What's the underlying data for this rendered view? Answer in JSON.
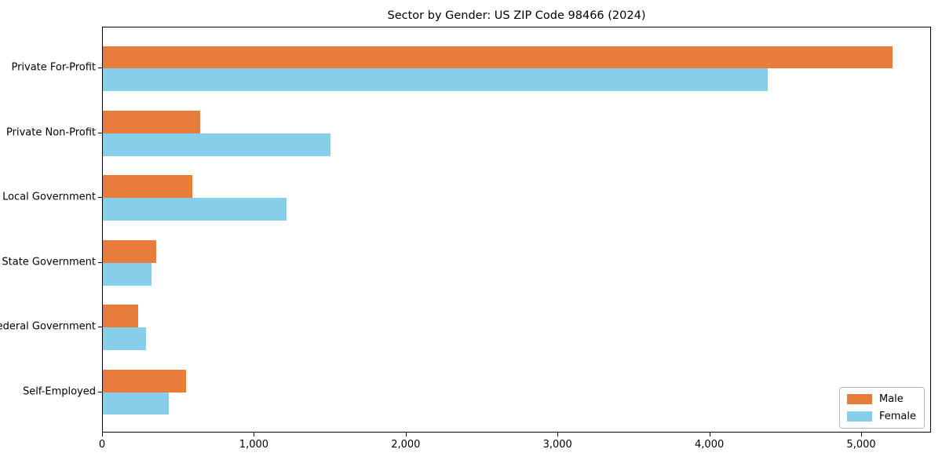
{
  "chart_data": {
    "type": "bar",
    "orientation": "horizontal",
    "title": "Sector by Gender: US ZIP Code 98466 (2024)",
    "categories": [
      "Private For-Profit",
      "Private Non-Profit",
      "Local Government",
      "State Government",
      "Federal Government",
      "Self-Employed"
    ],
    "series": [
      {
        "name": "Male",
        "color": "#E87D3B",
        "values": [
          5200,
          640,
          590,
          350,
          235,
          550
        ]
      },
      {
        "name": "Female",
        "color": "#87CEEB",
        "values": [
          4380,
          1500,
          1210,
          320,
          285,
          435
        ]
      }
    ],
    "xlabel": "",
    "ylabel": "",
    "xlim": [
      0,
      5460
    ],
    "xticks": [
      0,
      1000,
      2000,
      3000,
      4000,
      5000
    ],
    "xtick_labels": [
      "0",
      "1,000",
      "2,000",
      "3,000",
      "4,000",
      "5,000"
    ],
    "grid": false,
    "background": "#ffffff",
    "legend": {
      "position": "lower right"
    }
  }
}
